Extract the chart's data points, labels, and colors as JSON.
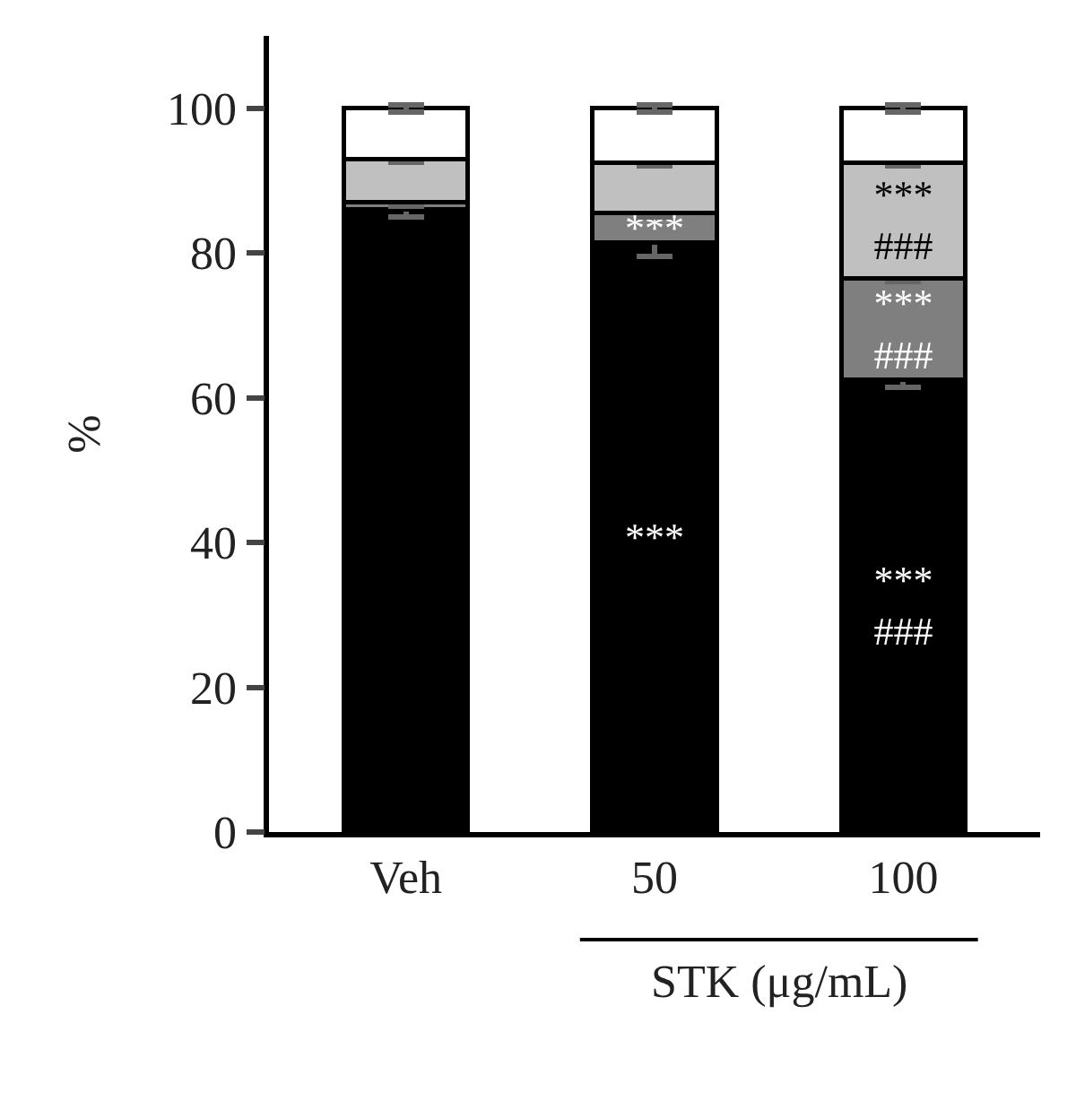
{
  "chart_data": {
    "type": "bar",
    "stacked": true,
    "ylabel": "%",
    "xlabel": "STK (μg/mL)",
    "categories": [
      "Veh",
      "50",
      "100"
    ],
    "series": [
      {
        "color": "#000000",
        "values": [
          86,
          81.5,
          62.5
        ],
        "errors": [
          1,
          2,
          1
        ],
        "value_labels": [
          null,
          "***",
          "***\n###"
        ]
      },
      {
        "color": "#7f7f7f",
        "values": [
          1,
          4,
          14
        ],
        "errors": [
          0.5,
          0.5,
          0.5
        ],
        "value_labels": [
          null,
          "***",
          "***\n###"
        ]
      },
      {
        "color": "#c0c0c0",
        "values": [
          6,
          7,
          16
        ],
        "errors": [
          0.5,
          0.5,
          0.5
        ],
        "value_labels": [
          null,
          null,
          "***\n###"
        ]
      },
      {
        "color": "#ffffff",
        "values": [
          7,
          7.5,
          7.5
        ],
        "errors": [
          0.5,
          0.5,
          0.5
        ]
      }
    ],
    "ylim": [
      0,
      110
    ],
    "yticks": [
      0,
      20,
      40,
      60,
      80,
      100
    ]
  }
}
